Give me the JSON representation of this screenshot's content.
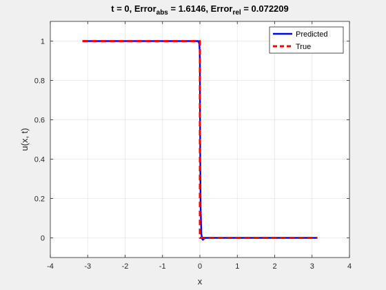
{
  "chart_data": {
    "type": "line",
    "title": {
      "prefix": "t = 0, Error",
      "abs_sub": "abs",
      "abs_value": " = 1.6146, Error",
      "rel_sub": "rel",
      "rel_value": " = 0.072209"
    },
    "xlabel": "x",
    "ylabel": "u(x, t)",
    "xlim": [
      -4,
      4
    ],
    "ylim": [
      -0.1,
      1.1
    ],
    "xticks": [
      -4,
      -3,
      -2,
      -1,
      0,
      1,
      2,
      3,
      4
    ],
    "xtick_labels": [
      "-4",
      "-3",
      "-2",
      "-1",
      "0",
      "1",
      "2",
      "3",
      "4"
    ],
    "yticks": [
      0,
      0.2,
      0.4,
      0.6,
      0.8,
      1
    ],
    "ytick_labels": [
      "0",
      "0.2",
      "0.4",
      "0.6",
      "0.8",
      "1"
    ],
    "grid": true,
    "legend_position": "top-right",
    "series": [
      {
        "name": "Predicted",
        "color": "#0000ff",
        "style": "solid",
        "x": [
          -3.1416,
          -1.5,
          -0.5,
          -0.05,
          -0.02,
          -0.01,
          0.0,
          0.005,
          0.01,
          0.02,
          0.04,
          0.06,
          0.08,
          0.1,
          0.15,
          0.3,
          1.0,
          2.0,
          3.1416
        ],
        "y": [
          1.0,
          1.0,
          1.0,
          1.0,
          0.99,
          0.97,
          0.9,
          0.6,
          0.4,
          0.15,
          0.02,
          -0.005,
          -0.01,
          -0.005,
          0.0,
          0.0,
          0.0,
          0.0,
          0.0
        ]
      },
      {
        "name": "True",
        "color": "#ff0000",
        "style": "dashed",
        "x": [
          -3.1416,
          0.0,
          0.0,
          3.1416
        ],
        "y": [
          1.0,
          1.0,
          0.0,
          0.0
        ]
      }
    ]
  }
}
